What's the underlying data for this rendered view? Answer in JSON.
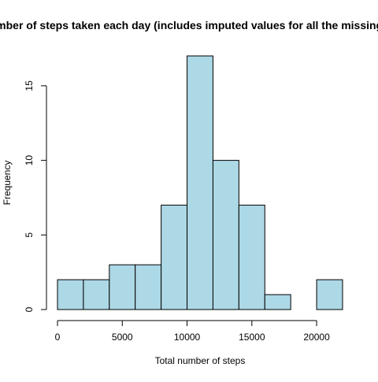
{
  "chart_data": {
    "type": "bar",
    "title": "Total number of steps taken each day (includes imputed values for all the missing values)",
    "xlabel": "Total number of steps",
    "ylabel": "Frequency",
    "bin_edges": [
      0,
      2000,
      4000,
      6000,
      8000,
      10000,
      12000,
      14000,
      16000,
      18000,
      20000,
      22000
    ],
    "values": [
      2,
      2,
      3,
      3,
      7,
      17,
      10,
      7,
      1,
      0,
      2
    ],
    "xlim": [
      0,
      22000
    ],
    "ylim": [
      0,
      17
    ],
    "x_ticks": [
      0,
      5000,
      10000,
      15000,
      20000
    ],
    "y_ticks": [
      0,
      5,
      10,
      15
    ],
    "grid": false,
    "bar_color": "#add8e6",
    "bar_border_color": "#000000"
  }
}
